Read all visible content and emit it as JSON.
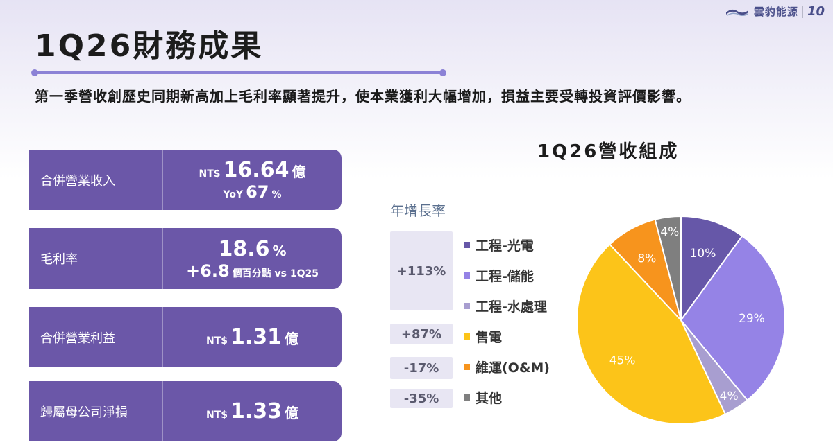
{
  "logo": {
    "name": "雲豹能源",
    "anniversary": "10"
  },
  "title": "1Q26財務成果",
  "subtitle": "第一季營收創歷史同期新高加上毛利率顯著提升，使本業獲利大幅增加，損益主要受轉投資評價影響。",
  "kpis": [
    {
      "label": "合併營業收入",
      "prefix": "NT$",
      "value": "16.64",
      "unit": "億",
      "sub_prefix": "YoY",
      "sub_value": "67",
      "sub_unit": "%"
    },
    {
      "label": "毛利率",
      "value": "18.6",
      "unit": "%",
      "sub_value": "+6.8",
      "sub_unit": "個百分點 vs 1Q25"
    },
    {
      "label": "合併營業利益",
      "prefix": "NT$",
      "value": "1.31",
      "unit": "億"
    },
    {
      "label": "歸屬母公司淨損",
      "prefix": "NT$",
      "value": "1.33",
      "unit": "億"
    }
  ],
  "yoy_title": "年增長率",
  "yoy_values": [
    "+113%",
    "+87%",
    "-17%",
    "-35%"
  ],
  "chart_data": {
    "type": "pie",
    "title": "1Q26營收組成",
    "series": [
      {
        "name": "工程-光電",
        "value": 10,
        "label": "10%",
        "color": "#6657a8"
      },
      {
        "name": "工程-儲能",
        "value": 29,
        "label": "29%",
        "color": "#9583e6"
      },
      {
        "name": "工程-水處理",
        "value": 4,
        "label": "4%",
        "color": "#a89ed0"
      },
      {
        "name": "售電",
        "value": 45,
        "label": "45%",
        "color": "#fcc419"
      },
      {
        "name": "維運(O&M)",
        "value": 8,
        "label": "8%",
        "color": "#f7941d"
      },
      {
        "name": "其他",
        "value": 4,
        "label": "4%",
        "color": "#7f7f7f"
      }
    ],
    "legend": "left"
  }
}
